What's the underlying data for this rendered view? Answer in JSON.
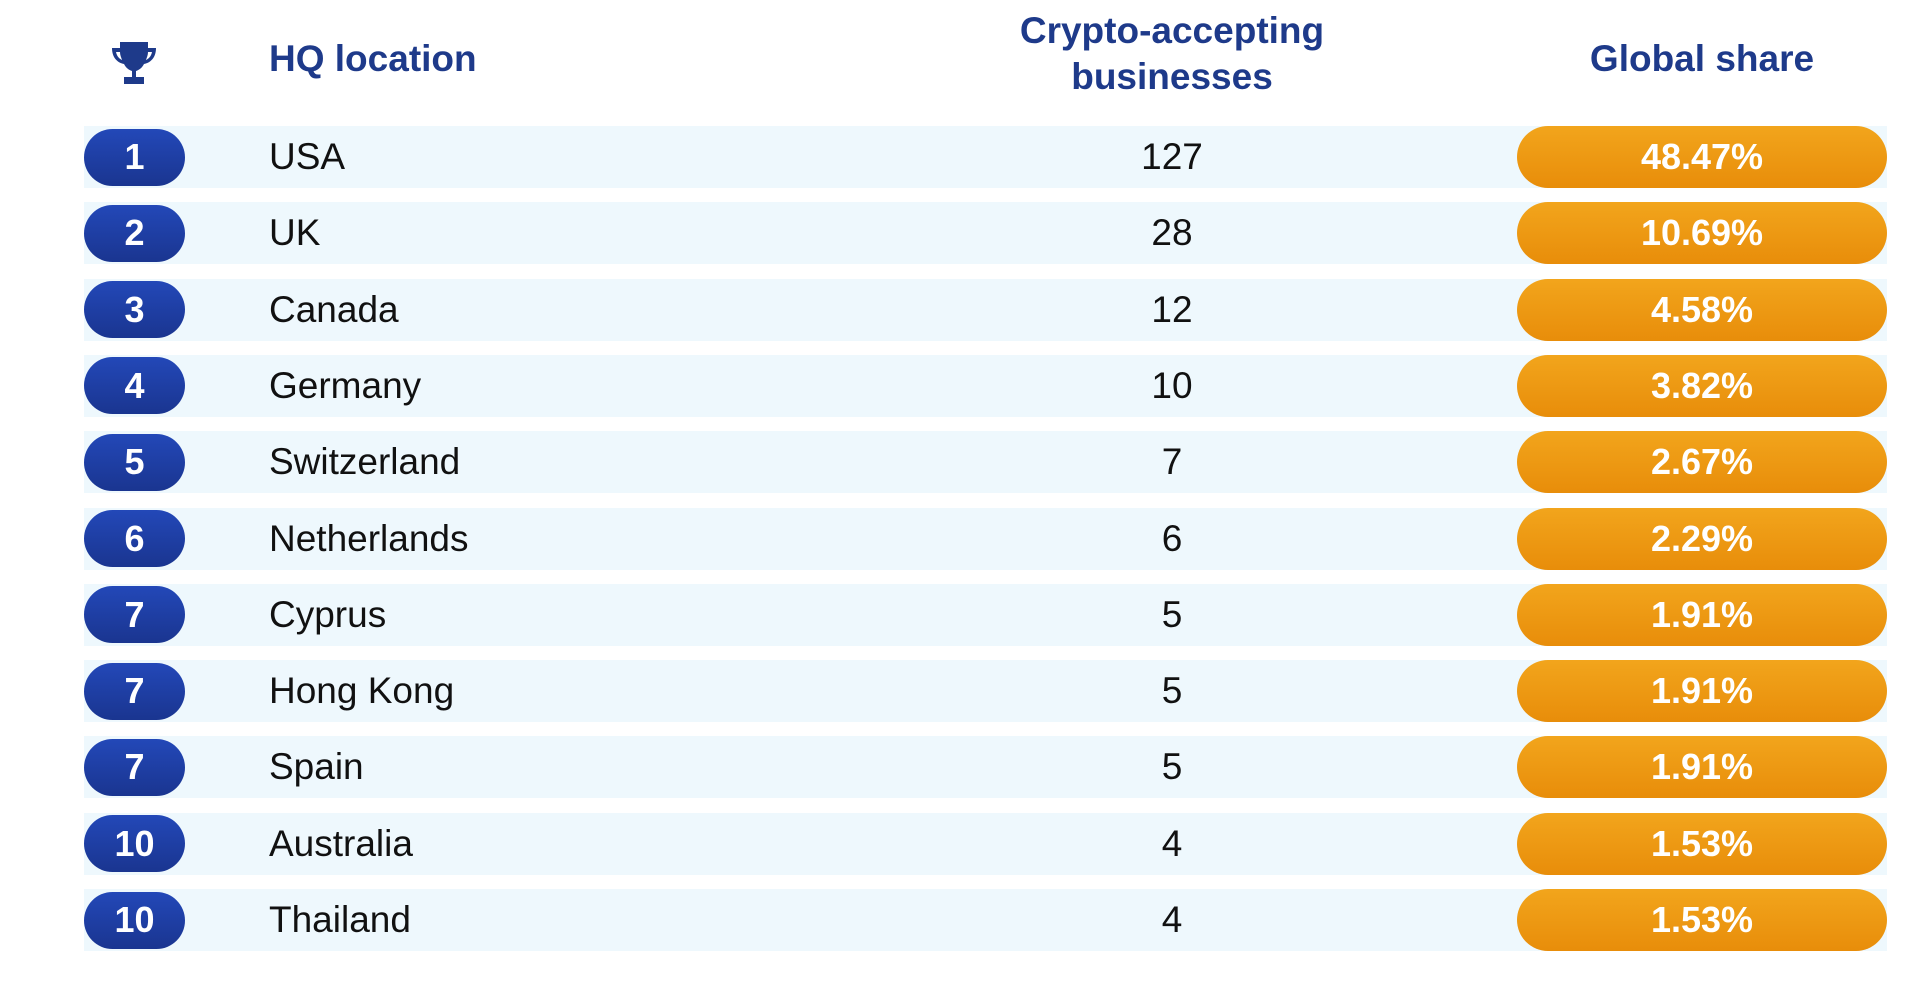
{
  "header": {
    "location": "HQ location",
    "businesses": "Crypto-accepting businesses",
    "share": "Global share"
  },
  "rows": [
    {
      "rank": 1,
      "location": "USA",
      "businesses": 127,
      "share": "48.47%"
    },
    {
      "rank": 2,
      "location": "UK",
      "businesses": 28,
      "share": "10.69%"
    },
    {
      "rank": 3,
      "location": "Canada",
      "businesses": 12,
      "share": "4.58%"
    },
    {
      "rank": 4,
      "location": "Germany",
      "businesses": 10,
      "share": "3.82%"
    },
    {
      "rank": 5,
      "location": "Switzerland",
      "businesses": 7,
      "share": "2.67%"
    },
    {
      "rank": 6,
      "location": "Netherlands",
      "businesses": 6,
      "share": "2.29%"
    },
    {
      "rank": 7,
      "location": "Cyprus",
      "businesses": 5,
      "share": "1.91%"
    },
    {
      "rank": 7,
      "location": "Hong Kong",
      "businesses": 5,
      "share": "1.91%"
    },
    {
      "rank": 7,
      "location": "Spain",
      "businesses": 5,
      "share": "1.91%"
    },
    {
      "rank": 10,
      "location": "Australia",
      "businesses": 4,
      "share": "1.53%"
    },
    {
      "rank": 10,
      "location": "Thailand",
      "businesses": 4,
      "share": "1.53%"
    }
  ]
}
